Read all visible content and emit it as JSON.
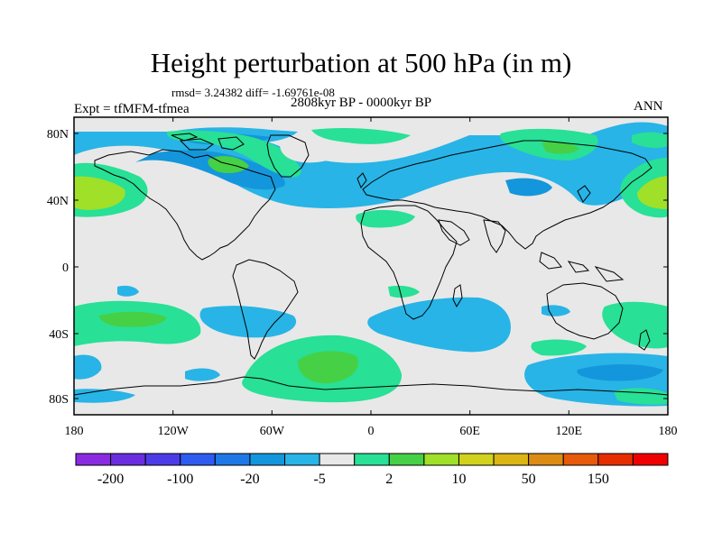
{
  "title": "Height perturbation at 500 hPa (in m)",
  "stats": "rmsd= 3.24382 diff= -1.69761e-08",
  "period": "2808kyr BP - 0000kyr BP",
  "experiment": "Expt = tfMFM-tfmea",
  "season": "ANN",
  "lat_ticks": [
    "80N",
    "40N",
    "0",
    "40S",
    "80S"
  ],
  "lon_ticks": [
    "180",
    "120W",
    "60W",
    "0",
    "60E",
    "120E",
    "180"
  ],
  "colorbar": {
    "labels": [
      "-200",
      "-100",
      "-20",
      "-5",
      "2",
      "10",
      "50",
      "150"
    ],
    "colors": [
      "#8a2be2",
      "#6a2ee0",
      "#4c3ce8",
      "#2e5cf0",
      "#1e78e8",
      "#1496dc",
      "#28b4e6",
      "#e8e8e8",
      "#28e096",
      "#46d046",
      "#a0e028",
      "#d2d21e",
      "#dcb414",
      "#dc8c14",
      "#e65a0a",
      "#e62d00",
      "#f00000"
    ]
  },
  "map": {
    "background": "#e8e8e8",
    "legend_colors": {
      "light_blue": "#28b4e6",
      "mid_blue": "#1496dc",
      "teal_green": "#28e096",
      "green": "#46d046",
      "yellow_green": "#a0e028"
    }
  }
}
